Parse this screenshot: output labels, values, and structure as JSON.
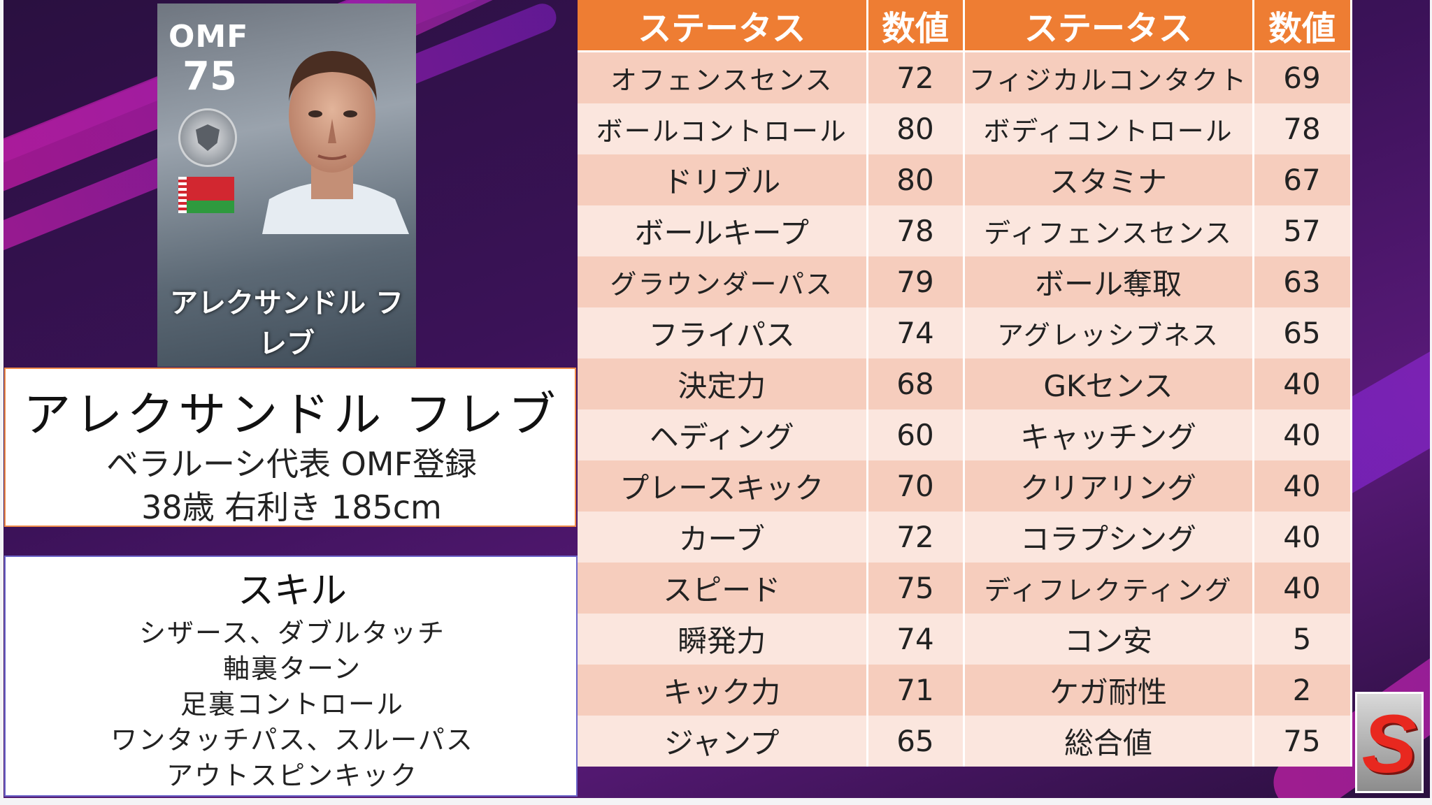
{
  "card": {
    "position": "OMF",
    "rating": "75",
    "name": "アレクサンドル フレブ"
  },
  "profile": {
    "name": "アレクサンドル フレブ",
    "team": "ベラルーシ代表  OMF登録",
    "info": "38歳 右利き 185cm"
  },
  "skills": {
    "title": "スキル",
    "lines": [
      "シザース、ダブルタッチ",
      "軸裏ターン",
      "足裏コントロール",
      "ワンタッチパス、スルーパス",
      "アウトスピンキック"
    ]
  },
  "stats": {
    "headers": [
      "ステータス",
      "数値",
      "ステータス",
      "数値"
    ],
    "rows": [
      [
        "オフェンスセンス",
        "72",
        "フィジカルコンタクト",
        "69"
      ],
      [
        "ボールコントロール",
        "80",
        "ボディコントロール",
        "78"
      ],
      [
        "ドリブル",
        "80",
        "スタミナ",
        "67"
      ],
      [
        "ボールキープ",
        "78",
        "ディフェンスセンス",
        "57"
      ],
      [
        "グラウンダーパス",
        "79",
        "ボール奪取",
        "63"
      ],
      [
        "フライパス",
        "74",
        "アグレッシブネス",
        "65"
      ],
      [
        "決定力",
        "68",
        "GKセンス",
        "40"
      ],
      [
        "ヘディング",
        "60",
        "キャッチング",
        "40"
      ],
      [
        "プレースキック",
        "70",
        "クリアリング",
        "40"
      ],
      [
        "カーブ",
        "72",
        "コラプシング",
        "40"
      ],
      [
        "スピード",
        "75",
        "ディフレクティング",
        "40"
      ],
      [
        "瞬発力",
        "74",
        "コン安",
        "5"
      ],
      [
        "キック力",
        "71",
        "ケガ耐性",
        "2"
      ],
      [
        "ジャンプ",
        "65",
        "総合値",
        "75"
      ]
    ]
  },
  "logo": {
    "letter": "S",
    "color": "#e8281f"
  },
  "colors": {
    "header_orange": "#ee7d33",
    "row_dark": "#f6cdbd",
    "row_light": "#fbe6de",
    "name_border": "#f08c4a",
    "skill_border": "#6b64c8"
  }
}
